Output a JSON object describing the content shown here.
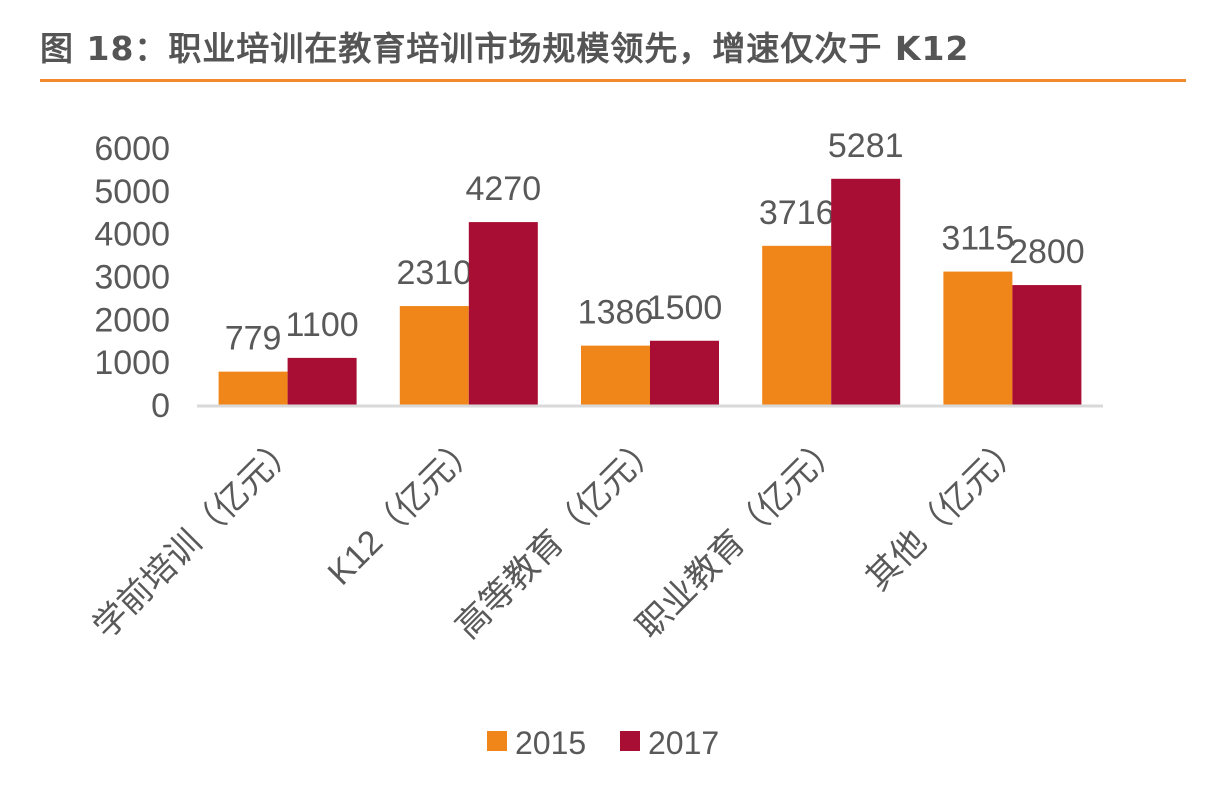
{
  "title": "图 18：职业培训在教育培训市场规模领先，增速仅次于 K12",
  "chart_data": {
    "type": "bar",
    "categories": [
      "学前培训（亿元）",
      "K12（亿元）",
      "高等教育（亿元）",
      "职业教育（亿元）",
      "其他（亿元）"
    ],
    "series": [
      {
        "name": "2015",
        "color": "#F0861A",
        "values": [
          779,
          2310,
          1386,
          3716,
          3115
        ]
      },
      {
        "name": "2017",
        "color": "#A80D33",
        "values": [
          1100,
          4270,
          1500,
          5281,
          2800
        ]
      }
    ],
    "yticks": [
      0,
      1000,
      2000,
      3000,
      4000,
      5000,
      6000
    ],
    "ylim": [
      0,
      6000
    ],
    "grid": false,
    "legend": "bottom",
    "data_labels": true
  }
}
